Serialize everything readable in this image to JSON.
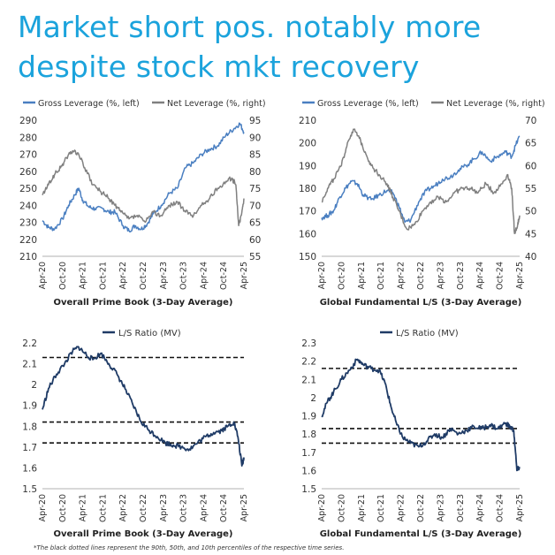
{
  "headline": {
    "line1": "Market short pos. notably more",
    "line2": "despite stock mkt recovery"
  },
  "footnote": "*The black dotted lines represent the 90th, 50th, and 10th percentiles of the respective time series.",
  "colors": {
    "gross": "#4a7fc1",
    "net": "#808080",
    "ls": "#1f3b66",
    "headline": "#1ba3dc"
  },
  "chart_data": [
    {
      "type": "line",
      "title": "Overall Prime Book (3-Day Average)",
      "x_ticks": [
        "Apr-20",
        "Oct-20",
        "Apr-21",
        "Oct-21",
        "Apr-22",
        "Oct-22",
        "Apr-23",
        "Oct-23",
        "Apr-24",
        "Oct-24",
        "Apr-25"
      ],
      "left_axis": {
        "min": 210,
        "max": 290,
        "ticks": [
          210,
          220,
          230,
          240,
          250,
          260,
          270,
          280,
          290
        ]
      },
      "right_axis": {
        "min": 55,
        "max": 95,
        "ticks": [
          55,
          60,
          65,
          70,
          75,
          80,
          85,
          90,
          95
        ]
      },
      "legend": [
        "Gross Leverage (%, left)",
        "Net Leverage (%, right)"
      ],
      "series": [
        {
          "name": "Gross Leverage (%, left)",
          "axis": "left",
          "x": [
            2020.25,
            2020.4,
            2020.55,
            2020.75,
            2020.9,
            2021.05,
            2021.15,
            2021.25,
            2021.4,
            2021.55,
            2021.75,
            2021.9,
            2022.05,
            2022.25,
            2022.4,
            2022.55,
            2022.7,
            2022.85,
            2023.0,
            2023.2,
            2023.4,
            2023.6,
            2023.8,
            2024.0,
            2024.2,
            2024.4,
            2024.6,
            2024.8,
            2025.0,
            2025.15,
            2025.25
          ],
          "y": [
            231,
            227,
            226,
            232,
            240,
            246,
            250,
            243,
            239,
            238,
            238,
            236,
            236,
            228,
            225,
            228,
            226,
            229,
            235,
            240,
            247,
            250,
            262,
            265,
            270,
            273,
            275,
            281,
            285,
            288,
            283
          ]
        },
        {
          "name": "Net Leverage (%, right)",
          "axis": "right",
          "x": [
            2020.25,
            2020.4,
            2020.55,
            2020.7,
            2020.85,
            2021.0,
            2021.15,
            2021.3,
            2021.5,
            2021.7,
            2021.9,
            2022.05,
            2022.2,
            2022.4,
            2022.6,
            2022.8,
            2023.0,
            2023.2,
            2023.4,
            2023.6,
            2023.8,
            2024.0,
            2024.2,
            2024.4,
            2024.6,
            2024.8,
            2024.95,
            2025.05,
            2025.12,
            2025.2,
            2025.25
          ],
          "y": [
            73,
            76,
            79,
            81,
            84,
            86,
            85,
            81,
            76,
            74,
            72,
            70,
            68,
            66,
            67,
            65,
            68,
            67,
            70,
            71,
            68,
            67,
            70,
            72,
            75,
            77,
            78,
            76,
            64,
            68,
            72
          ]
        }
      ]
    },
    {
      "type": "line",
      "title": "Global Fundamental L/S (3-Day Average)",
      "x_ticks": [
        "Apr-20",
        "Oct-20",
        "Apr-21",
        "Oct-21",
        "Apr-22",
        "Oct-22",
        "Apr-23",
        "Oct-23",
        "Apr-24",
        "Oct-24",
        "Apr-25"
      ],
      "left_axis": {
        "min": 150,
        "max": 210,
        "ticks": [
          150,
          160,
          170,
          180,
          190,
          200,
          210
        ]
      },
      "right_axis": {
        "min": 40,
        "max": 70,
        "ticks": [
          40,
          45,
          50,
          55,
          60,
          65,
          70
        ]
      },
      "legend": [
        "Gross Leverage (%, left)",
        "Net Leverage (%, right)"
      ],
      "series": [
        {
          "name": "Gross Leverage (%, left)",
          "axis": "left",
          "x": [
            2020.25,
            2020.4,
            2020.55,
            2020.7,
            2020.85,
            2021.0,
            2021.15,
            2021.3,
            2021.5,
            2021.7,
            2021.9,
            2022.05,
            2022.2,
            2022.35,
            2022.5,
            2022.7,
            2022.9,
            2023.1,
            2023.3,
            2023.5,
            2023.7,
            2023.9,
            2024.1,
            2024.3,
            2024.5,
            2024.7,
            2024.9,
            2025.05,
            2025.15,
            2025.25
          ],
          "y": [
            167,
            168,
            170,
            176,
            180,
            183,
            182,
            177,
            175,
            177,
            179,
            178,
            172,
            165,
            166,
            174,
            179,
            181,
            184,
            185,
            188,
            190,
            193,
            196,
            192,
            194,
            196,
            194,
            199,
            203
          ]
        },
        {
          "name": "Net Leverage (%, right)",
          "axis": "right",
          "x": [
            2020.25,
            2020.4,
            2020.55,
            2020.75,
            2020.9,
            2021.05,
            2021.2,
            2021.35,
            2021.5,
            2021.7,
            2021.9,
            2022.05,
            2022.2,
            2022.4,
            2022.6,
            2022.8,
            2023.0,
            2023.2,
            2023.4,
            2023.6,
            2023.8,
            2024.0,
            2024.2,
            2024.4,
            2024.6,
            2024.8,
            2024.95,
            2025.05,
            2025.12,
            2025.2,
            2025.25
          ],
          "y": [
            52,
            55,
            57,
            60,
            65,
            68,
            66,
            63,
            60,
            58,
            56,
            53,
            50,
            46,
            47,
            50,
            52,
            53,
            52,
            54,
            55,
            55,
            54,
            56,
            54,
            56,
            58,
            55,
            45,
            47,
            49
          ]
        }
      ]
    },
    {
      "type": "line",
      "title": "Overall Prime Book (3-Day Average)",
      "x_ticks": [
        "Apr-20",
        "Oct-20",
        "Apr-21",
        "Oct-21",
        "Apr-22",
        "Oct-22",
        "Apr-23",
        "Oct-23",
        "Apr-24",
        "Oct-24",
        "Apr-25"
      ],
      "left_axis": {
        "min": 1.5,
        "max": 2.2,
        "ticks": [
          1.5,
          1.6,
          1.7,
          1.8,
          1.9,
          2.0,
          2.1,
          2.2
        ]
      },
      "legend": [
        "L/S Ratio (MV)"
      ],
      "percentile_lines": [
        2.13,
        1.82,
        1.72
      ],
      "series": [
        {
          "name": "L/S Ratio (MV)",
          "axis": "left",
          "x": [
            2020.25,
            2020.4,
            2020.6,
            2020.8,
            2021.0,
            2021.15,
            2021.3,
            2021.5,
            2021.7,
            2021.9,
            2022.1,
            2022.3,
            2022.5,
            2022.7,
            2022.9,
            2023.1,
            2023.3,
            2023.5,
            2023.7,
            2023.9,
            2024.1,
            2024.3,
            2024.5,
            2024.7,
            2024.85,
            2025.0,
            2025.1,
            2025.2,
            2025.25
          ],
          "y": [
            1.88,
            1.98,
            2.05,
            2.1,
            2.16,
            2.18,
            2.15,
            2.12,
            2.15,
            2.1,
            2.05,
            1.98,
            1.9,
            1.82,
            1.78,
            1.75,
            1.72,
            1.71,
            1.7,
            1.69,
            1.72,
            1.75,
            1.77,
            1.78,
            1.8,
            1.82,
            1.75,
            1.61,
            1.65
          ]
        }
      ]
    },
    {
      "type": "line",
      "title": "Global Fundamental L/S (3-Day Average)",
      "x_ticks": [
        "Apr-20",
        "Oct-20",
        "Apr-21",
        "Oct-21",
        "Apr-22",
        "Oct-22",
        "Apr-23",
        "Oct-23",
        "Apr-24",
        "Oct-24",
        "Apr-25"
      ],
      "left_axis": {
        "min": 1.5,
        "max": 2.3,
        "ticks": [
          1.5,
          1.6,
          1.7,
          1.8,
          1.9,
          2.0,
          2.1,
          2.2,
          2.3
        ]
      },
      "legend": [
        "L/S Ratio (MV)"
      ],
      "percentile_lines": [
        2.16,
        1.83,
        1.75
      ],
      "series": [
        {
          "name": "L/S Ratio (MV)",
          "axis": "left",
          "x": [
            2020.25,
            2020.4,
            2020.55,
            2020.75,
            2020.95,
            2021.15,
            2021.3,
            2021.5,
            2021.7,
            2021.85,
            2022.0,
            2022.15,
            2022.3,
            2022.5,
            2022.7,
            2022.9,
            2023.1,
            2023.3,
            2023.5,
            2023.7,
            2023.9,
            2024.1,
            2024.3,
            2024.5,
            2024.7,
            2024.9,
            2025.0,
            2025.1,
            2025.18,
            2025.25
          ],
          "y": [
            1.9,
            1.98,
            2.03,
            2.1,
            2.15,
            2.21,
            2.18,
            2.16,
            2.15,
            2.08,
            1.95,
            1.85,
            1.78,
            1.75,
            1.73,
            1.76,
            1.8,
            1.78,
            1.83,
            1.8,
            1.82,
            1.84,
            1.83,
            1.85,
            1.83,
            1.86,
            1.84,
            1.82,
            1.6,
            1.62
          ]
        }
      ]
    }
  ]
}
